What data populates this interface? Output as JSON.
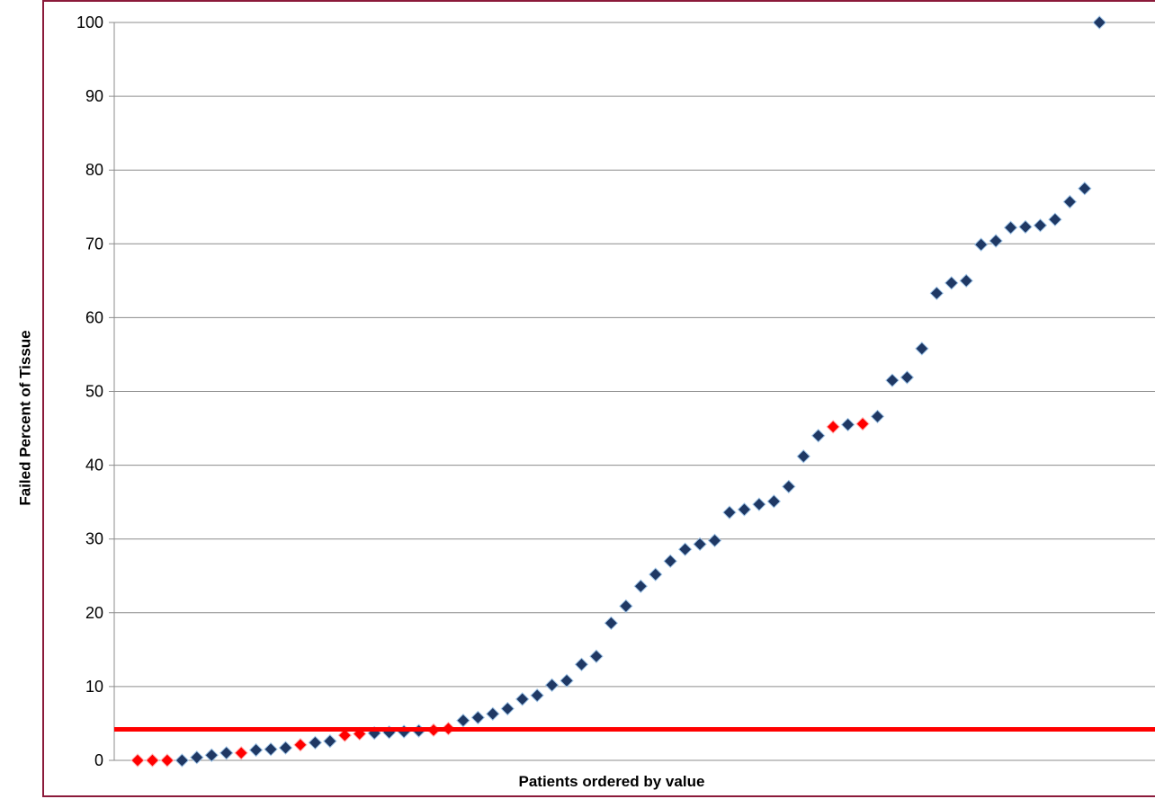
{
  "chart_data": {
    "type": "scatter",
    "title": "",
    "xlabel": "Patients ordered by value",
    "ylabel": "Failed Percent of Tissue",
    "ylim": [
      0,
      100
    ],
    "yticks": [
      0,
      10,
      20,
      30,
      40,
      50,
      60,
      70,
      80,
      90,
      100
    ],
    "grid": true,
    "legend": "none",
    "threshold_line": {
      "y": 4.2,
      "color": "#ff0000"
    },
    "colors": {
      "default": "#1f3864",
      "highlight": "#ff0000",
      "threshold": "#ff0000",
      "frame": "#8b1a3a"
    },
    "points": [
      {
        "x": 1,
        "y": 0,
        "highlight": true
      },
      {
        "x": 2,
        "y": 0,
        "highlight": true
      },
      {
        "x": 3,
        "y": 0,
        "highlight": true
      },
      {
        "x": 4,
        "y": 0,
        "highlight": false
      },
      {
        "x": 5,
        "y": 0.4,
        "highlight": false
      },
      {
        "x": 6,
        "y": 0.7,
        "highlight": false
      },
      {
        "x": 7,
        "y": 1.0,
        "highlight": false
      },
      {
        "x": 8,
        "y": 1.0,
        "highlight": true
      },
      {
        "x": 9,
        "y": 1.4,
        "highlight": false
      },
      {
        "x": 10,
        "y": 1.5,
        "highlight": false
      },
      {
        "x": 11,
        "y": 1.7,
        "highlight": false
      },
      {
        "x": 12,
        "y": 2.1,
        "highlight": true
      },
      {
        "x": 13,
        "y": 2.4,
        "highlight": false
      },
      {
        "x": 14,
        "y": 2.6,
        "highlight": false
      },
      {
        "x": 15,
        "y": 3.4,
        "highlight": true
      },
      {
        "x": 16,
        "y": 3.6,
        "highlight": true
      },
      {
        "x": 17,
        "y": 3.7,
        "highlight": false
      },
      {
        "x": 18,
        "y": 3.8,
        "highlight": false
      },
      {
        "x": 19,
        "y": 3.9,
        "highlight": false
      },
      {
        "x": 20,
        "y": 4.0,
        "highlight": false
      },
      {
        "x": 21,
        "y": 4.1,
        "highlight": true
      },
      {
        "x": 22,
        "y": 4.3,
        "highlight": true
      },
      {
        "x": 23,
        "y": 5.4,
        "highlight": false
      },
      {
        "x": 24,
        "y": 5.8,
        "highlight": false
      },
      {
        "x": 25,
        "y": 6.3,
        "highlight": false
      },
      {
        "x": 26,
        "y": 7.0,
        "highlight": false
      },
      {
        "x": 27,
        "y": 8.3,
        "highlight": false
      },
      {
        "x": 28,
        "y": 8.8,
        "highlight": false
      },
      {
        "x": 29,
        "y": 10.2,
        "highlight": false
      },
      {
        "x": 30,
        "y": 10.8,
        "highlight": false
      },
      {
        "x": 31,
        "y": 13.0,
        "highlight": false
      },
      {
        "x": 32,
        "y": 14.1,
        "highlight": false
      },
      {
        "x": 33,
        "y": 18.6,
        "highlight": false
      },
      {
        "x": 34,
        "y": 20.9,
        "highlight": false
      },
      {
        "x": 35,
        "y": 23.6,
        "highlight": false
      },
      {
        "x": 36,
        "y": 25.2,
        "highlight": false
      },
      {
        "x": 37,
        "y": 27.0,
        "highlight": false
      },
      {
        "x": 38,
        "y": 28.6,
        "highlight": false
      },
      {
        "x": 39,
        "y": 29.3,
        "highlight": false
      },
      {
        "x": 40,
        "y": 29.8,
        "highlight": false
      },
      {
        "x": 41,
        "y": 33.6,
        "highlight": false
      },
      {
        "x": 42,
        "y": 34.0,
        "highlight": false
      },
      {
        "x": 43,
        "y": 34.7,
        "highlight": false
      },
      {
        "x": 44,
        "y": 35.1,
        "highlight": false
      },
      {
        "x": 45,
        "y": 37.1,
        "highlight": false
      },
      {
        "x": 46,
        "y": 41.2,
        "highlight": false
      },
      {
        "x": 47,
        "y": 44.0,
        "highlight": false
      },
      {
        "x": 48,
        "y": 45.2,
        "highlight": true
      },
      {
        "x": 49,
        "y": 45.5,
        "highlight": false
      },
      {
        "x": 50,
        "y": 45.6,
        "highlight": true
      },
      {
        "x": 51,
        "y": 46.6,
        "highlight": false
      },
      {
        "x": 52,
        "y": 51.5,
        "highlight": false
      },
      {
        "x": 53,
        "y": 51.9,
        "highlight": false
      },
      {
        "x": 54,
        "y": 55.8,
        "highlight": false
      },
      {
        "x": 55,
        "y": 63.3,
        "highlight": false
      },
      {
        "x": 56,
        "y": 64.7,
        "highlight": false
      },
      {
        "x": 57,
        "y": 65.0,
        "highlight": false
      },
      {
        "x": 58,
        "y": 69.9,
        "highlight": false
      },
      {
        "x": 59,
        "y": 70.4,
        "highlight": false
      },
      {
        "x": 60,
        "y": 72.2,
        "highlight": false
      },
      {
        "x": 61,
        "y": 72.3,
        "highlight": false
      },
      {
        "x": 62,
        "y": 72.5,
        "highlight": false
      },
      {
        "x": 63,
        "y": 73.3,
        "highlight": false
      },
      {
        "x": 64,
        "y": 75.7,
        "highlight": false
      },
      {
        "x": 65,
        "y": 77.5,
        "highlight": false
      },
      {
        "x": 66,
        "y": 100,
        "highlight": false
      }
    ]
  }
}
